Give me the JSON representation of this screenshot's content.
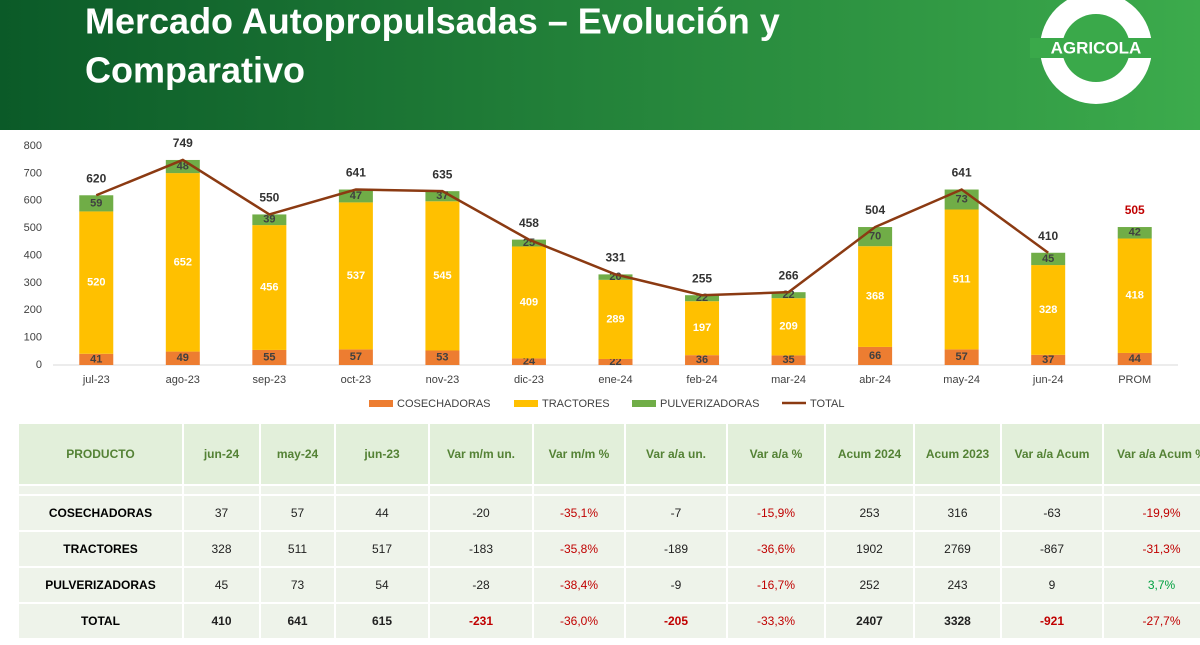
{
  "header": {
    "title_line1": "Mercado Autopropulsadas – Evolución y",
    "title_line2": "Comparativo",
    "logo": "AGRICOLA"
  },
  "chart_data": {
    "type": "stacked-bar-line",
    "categories": [
      "jul-23",
      "ago-23",
      "sep-23",
      "oct-23",
      "nov-23",
      "dic-23",
      "ene-24",
      "feb-24",
      "mar-24",
      "abr-24",
      "may-24",
      "jun-24",
      "PROM"
    ],
    "series": [
      {
        "name": "COSECHADORAS",
        "color": "#ed7d31",
        "values": [
          41,
          49,
          55,
          57,
          53,
          24,
          22,
          36,
          35,
          66,
          57,
          37,
          44
        ]
      },
      {
        "name": "TRACTORES",
        "color": "#ffc000",
        "values": [
          520,
          652,
          456,
          537,
          545,
          409,
          289,
          197,
          209,
          368,
          511,
          328,
          418
        ]
      },
      {
        "name": "PULVERIZADORAS",
        "color": "#70ad47",
        "values": [
          59,
          48,
          39,
          47,
          37,
          25,
          20,
          22,
          22,
          70,
          73,
          45,
          42
        ]
      },
      {
        "name": "TOTAL",
        "color": "#8b3a12",
        "type": "line",
        "values": [
          620,
          749,
          550,
          641,
          635,
          458,
          331,
          255,
          266,
          504,
          641,
          410,
          null
        ]
      }
    ],
    "prom_total": 505,
    "prom_total_color": "#c00000",
    "ylim": [
      0,
      800
    ],
    "yticks": [
      0,
      100,
      200,
      300,
      400,
      500,
      600,
      700,
      800
    ],
    "grid": false,
    "legend": "bottom"
  },
  "table": {
    "header": [
      "PRODUCTO",
      "jun-24",
      "may-24",
      "jun-23",
      "Var m/m un.",
      "Var m/m %",
      "Var a/a un.",
      "Var a/a %",
      "Acum 2024",
      "Acum 2023",
      "Var a/a Acum",
      "Var a/a Acum %"
    ],
    "rows": [
      [
        "COSECHADORAS",
        "37",
        "57",
        "44",
        "-20",
        "-35,1%",
        "-7",
        "-15,9%",
        "253",
        "316",
        "-63",
        "-19,9%"
      ],
      [
        "TRACTORES",
        "328",
        "511",
        "517",
        "-183",
        "-35,8%",
        "-189",
        "-36,6%",
        "1902",
        "2769",
        "-867",
        "-31,3%"
      ],
      [
        "PULVERIZADORAS",
        "45",
        "73",
        "54",
        "-28",
        "-38,4%",
        "-9",
        "-16,7%",
        "252",
        "243",
        "9",
        "3,7%"
      ],
      [
        "TOTAL",
        "410",
        "641",
        "615",
        "-231",
        "-36,0%",
        "-205",
        "-33,3%",
        "2407",
        "3328",
        "-921",
        "-27,7%"
      ]
    ]
  }
}
